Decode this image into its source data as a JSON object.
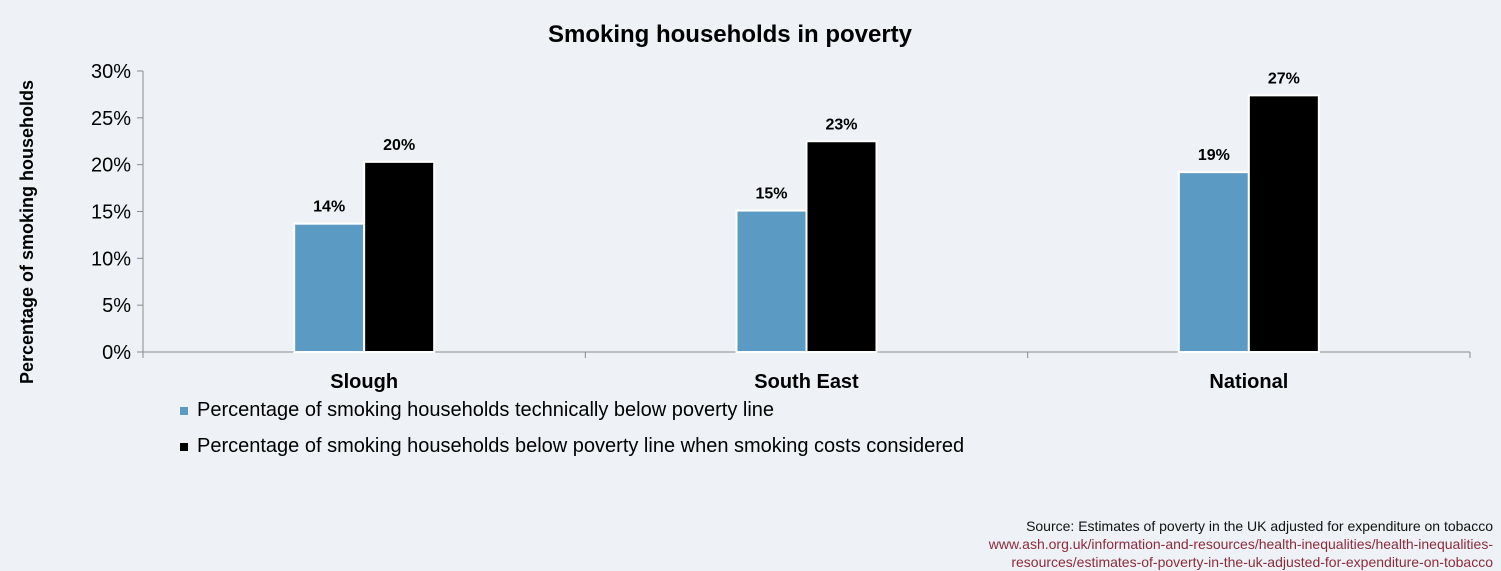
{
  "chart_data": {
    "type": "bar",
    "title": "Smoking households in poverty",
    "ylabel": "Percentage of smoking households",
    "xlabel": "",
    "categories": [
      "Slough",
      "South East",
      "National"
    ],
    "ylim": [
      0,
      30
    ],
    "yticks": [
      "0%",
      "5%",
      "10%",
      "15%",
      "20%",
      "25%",
      "30%"
    ],
    "series": [
      {
        "name": "Percentage of smoking households technically below poverty line",
        "color": "#5b9bc3",
        "values": [
          13.7,
          15.1,
          19.2
        ],
        "labels": [
          "14%",
          "15%",
          "19%"
        ]
      },
      {
        "name": "Percentage of smoking households below poverty line when smoking costs considered",
        "color": "#000000",
        "values": [
          20.3,
          22.5,
          27.4
        ],
        "labels": [
          "20%",
          "23%",
          "27%"
        ]
      }
    ],
    "grid": false,
    "legend_position": "bottom-left"
  },
  "source": {
    "text": "Source: Estimates of poverty in the UK adjusted for expenditure on tobacco",
    "link_line1": "www.ash.org.uk/information-and-resources/health-inequalities/health-inequalities-",
    "link_line2": "resources/estimates-of-poverty-in-the-uk-adjusted-for-expenditure-on-tobacco"
  }
}
